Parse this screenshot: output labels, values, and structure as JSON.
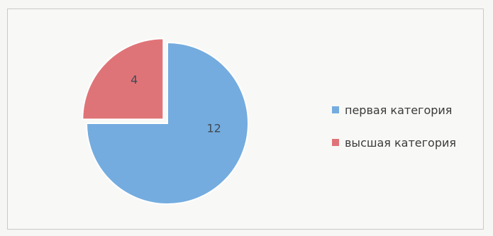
{
  "chart_data": {
    "type": "pie",
    "title": "",
    "categories": [
      "первая категория",
      "высшая категория"
    ],
    "values": [
      12,
      4
    ],
    "data_labels": [
      "12",
      "4"
    ],
    "colors": [
      "#74acdf",
      "#df7478"
    ],
    "exploded": [
      false,
      true
    ],
    "legend": {
      "placement": "right",
      "items": [
        {
          "label": "первая категория",
          "color": "#74acdf"
        },
        {
          "label": "высшая категория",
          "color": "#df7478"
        }
      ]
    }
  }
}
